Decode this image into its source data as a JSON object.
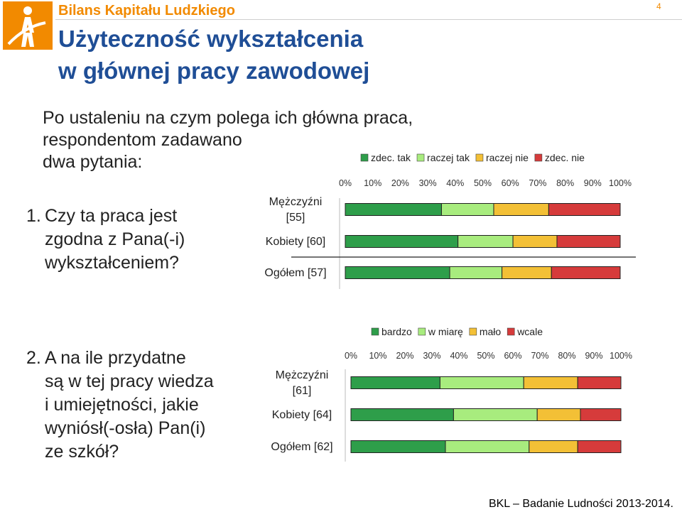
{
  "header": {
    "brand": "Bilans Kapitału Ludzkiego",
    "title_line1": "Użyteczność wykształcenia",
    "title_line2": "w głównej pracy zawodowej",
    "page_number": "4"
  },
  "intro": {
    "line1": "Po ustaleniu na czym polega ich główna praca,",
    "line2": "respondentom zadawano",
    "line3": "dwa pytania:"
  },
  "question1": {
    "number": "1.",
    "line1": "Czy ta praca jest",
    "line2": "zgodna z Pana(-i)",
    "line3": "wykształceniem?"
  },
  "question2": {
    "number": "2.",
    "line1": "A na ile przydatne",
    "line2": "są w tej pracy wiedza",
    "line3": "i umiejętności, jakie",
    "line4": "wyniósł(-osła) Pan(i)",
    "line5": "ze szkół?"
  },
  "footer": {
    "text": "BKL – Badanie Ludności 2013-2014."
  },
  "colors": {
    "dark_green": "#2e9e4a",
    "light_green": "#a8ec7e",
    "yellow": "#f3c036",
    "red": "#d63b3b",
    "title_blue": "#1f4e96",
    "brand_orange": "#f28a00"
  },
  "chart_data": [
    {
      "type": "bar",
      "orientation": "horizontal",
      "stacked": "percent",
      "legend_position": "top",
      "categories": [
        "Mężczyźni [55]",
        "Kobiety [60]",
        "Ogółem [57]"
      ],
      "category_lines": [
        [
          "Mężczyźni",
          "[55]"
        ],
        [
          "Kobiety [60]"
        ],
        [
          "Ogółem [57]"
        ]
      ],
      "xticks": [
        "0%",
        "10%",
        "20%",
        "30%",
        "40%",
        "50%",
        "60%",
        "70%",
        "80%",
        "90%",
        "100%"
      ],
      "xlim": [
        0,
        100
      ],
      "series": [
        {
          "name": "zdec. tak",
          "values": [
            35,
            41,
            38
          ]
        },
        {
          "name": "raczej tak",
          "values": [
            19,
            20,
            19
          ]
        },
        {
          "name": "raczej nie",
          "values": [
            20,
            16,
            18
          ]
        },
        {
          "name": "zdec. nie",
          "values": [
            26,
            23,
            25
          ]
        }
      ]
    },
    {
      "type": "bar",
      "orientation": "horizontal",
      "stacked": "percent",
      "legend_position": "top",
      "categories": [
        "Mężczyźni [61]",
        "Kobiety [64]",
        "Ogółem [62]"
      ],
      "category_lines": [
        [
          "Mężczyźni",
          "[61]"
        ],
        [
          "Kobiety [64]"
        ],
        [
          "Ogółem [62]"
        ]
      ],
      "xticks": [
        "0%",
        "10%",
        "20%",
        "30%",
        "40%",
        "50%",
        "60%",
        "70%",
        "80%",
        "90%",
        "100%"
      ],
      "xlim": [
        0,
        100
      ],
      "series": [
        {
          "name": "bardzo",
          "values": [
            33,
            38,
            35
          ]
        },
        {
          "name": "w miarę",
          "values": [
            31,
            31,
            31
          ]
        },
        {
          "name": "mało",
          "values": [
            20,
            16,
            18
          ]
        },
        {
          "name": "wcale",
          "values": [
            16,
            15,
            16
          ]
        }
      ]
    }
  ]
}
